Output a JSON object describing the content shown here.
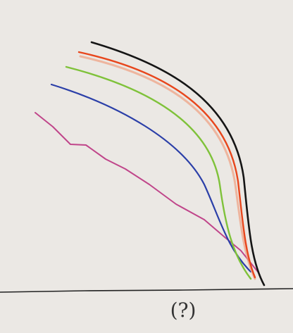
{
  "annotation": "(?)"
}
